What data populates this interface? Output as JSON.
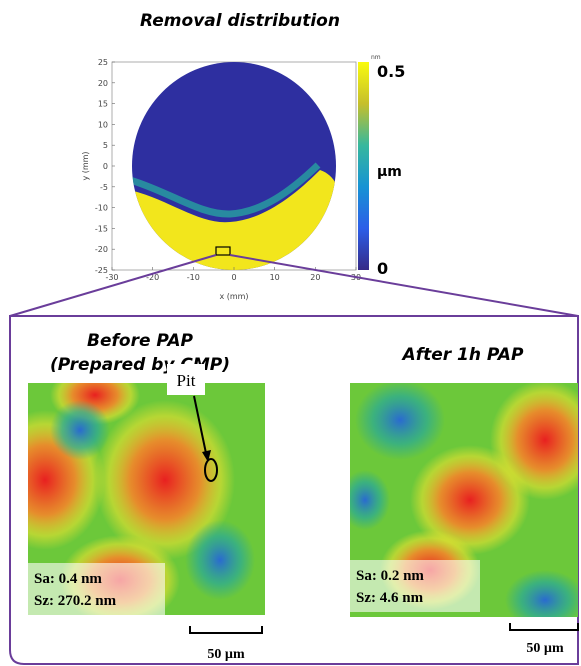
{
  "title": "Removal distribution",
  "heatmap": {
    "x_ticks": [
      "-30",
      "-20",
      "-10",
      "0",
      "10",
      "20",
      "30"
    ],
    "y_ticks": [
      "25",
      "20",
      "15",
      "10",
      "5",
      "0",
      "-5",
      "-10",
      "-15",
      "-20",
      "-25"
    ],
    "x_label": "x (mm)",
    "y_label": "y (mm)",
    "colorbar": {
      "small_unit": "nm",
      "max": "0.5",
      "unit": "µm",
      "min": "0"
    }
  },
  "before": {
    "title_lines": [
      "Before PAP",
      "(Prepared by CMP)"
    ],
    "pit_label": "Pit",
    "stats": [
      "Sa: 0.4 nm",
      "Sz: 270.2 nm"
    ],
    "scale_bar": "50 µm"
  },
  "after": {
    "title": "After 1h PAP",
    "stats": [
      "Sa: 0.2 nm",
      "Sz: 4.6 nm"
    ],
    "scale_bar": "50 µm"
  }
}
